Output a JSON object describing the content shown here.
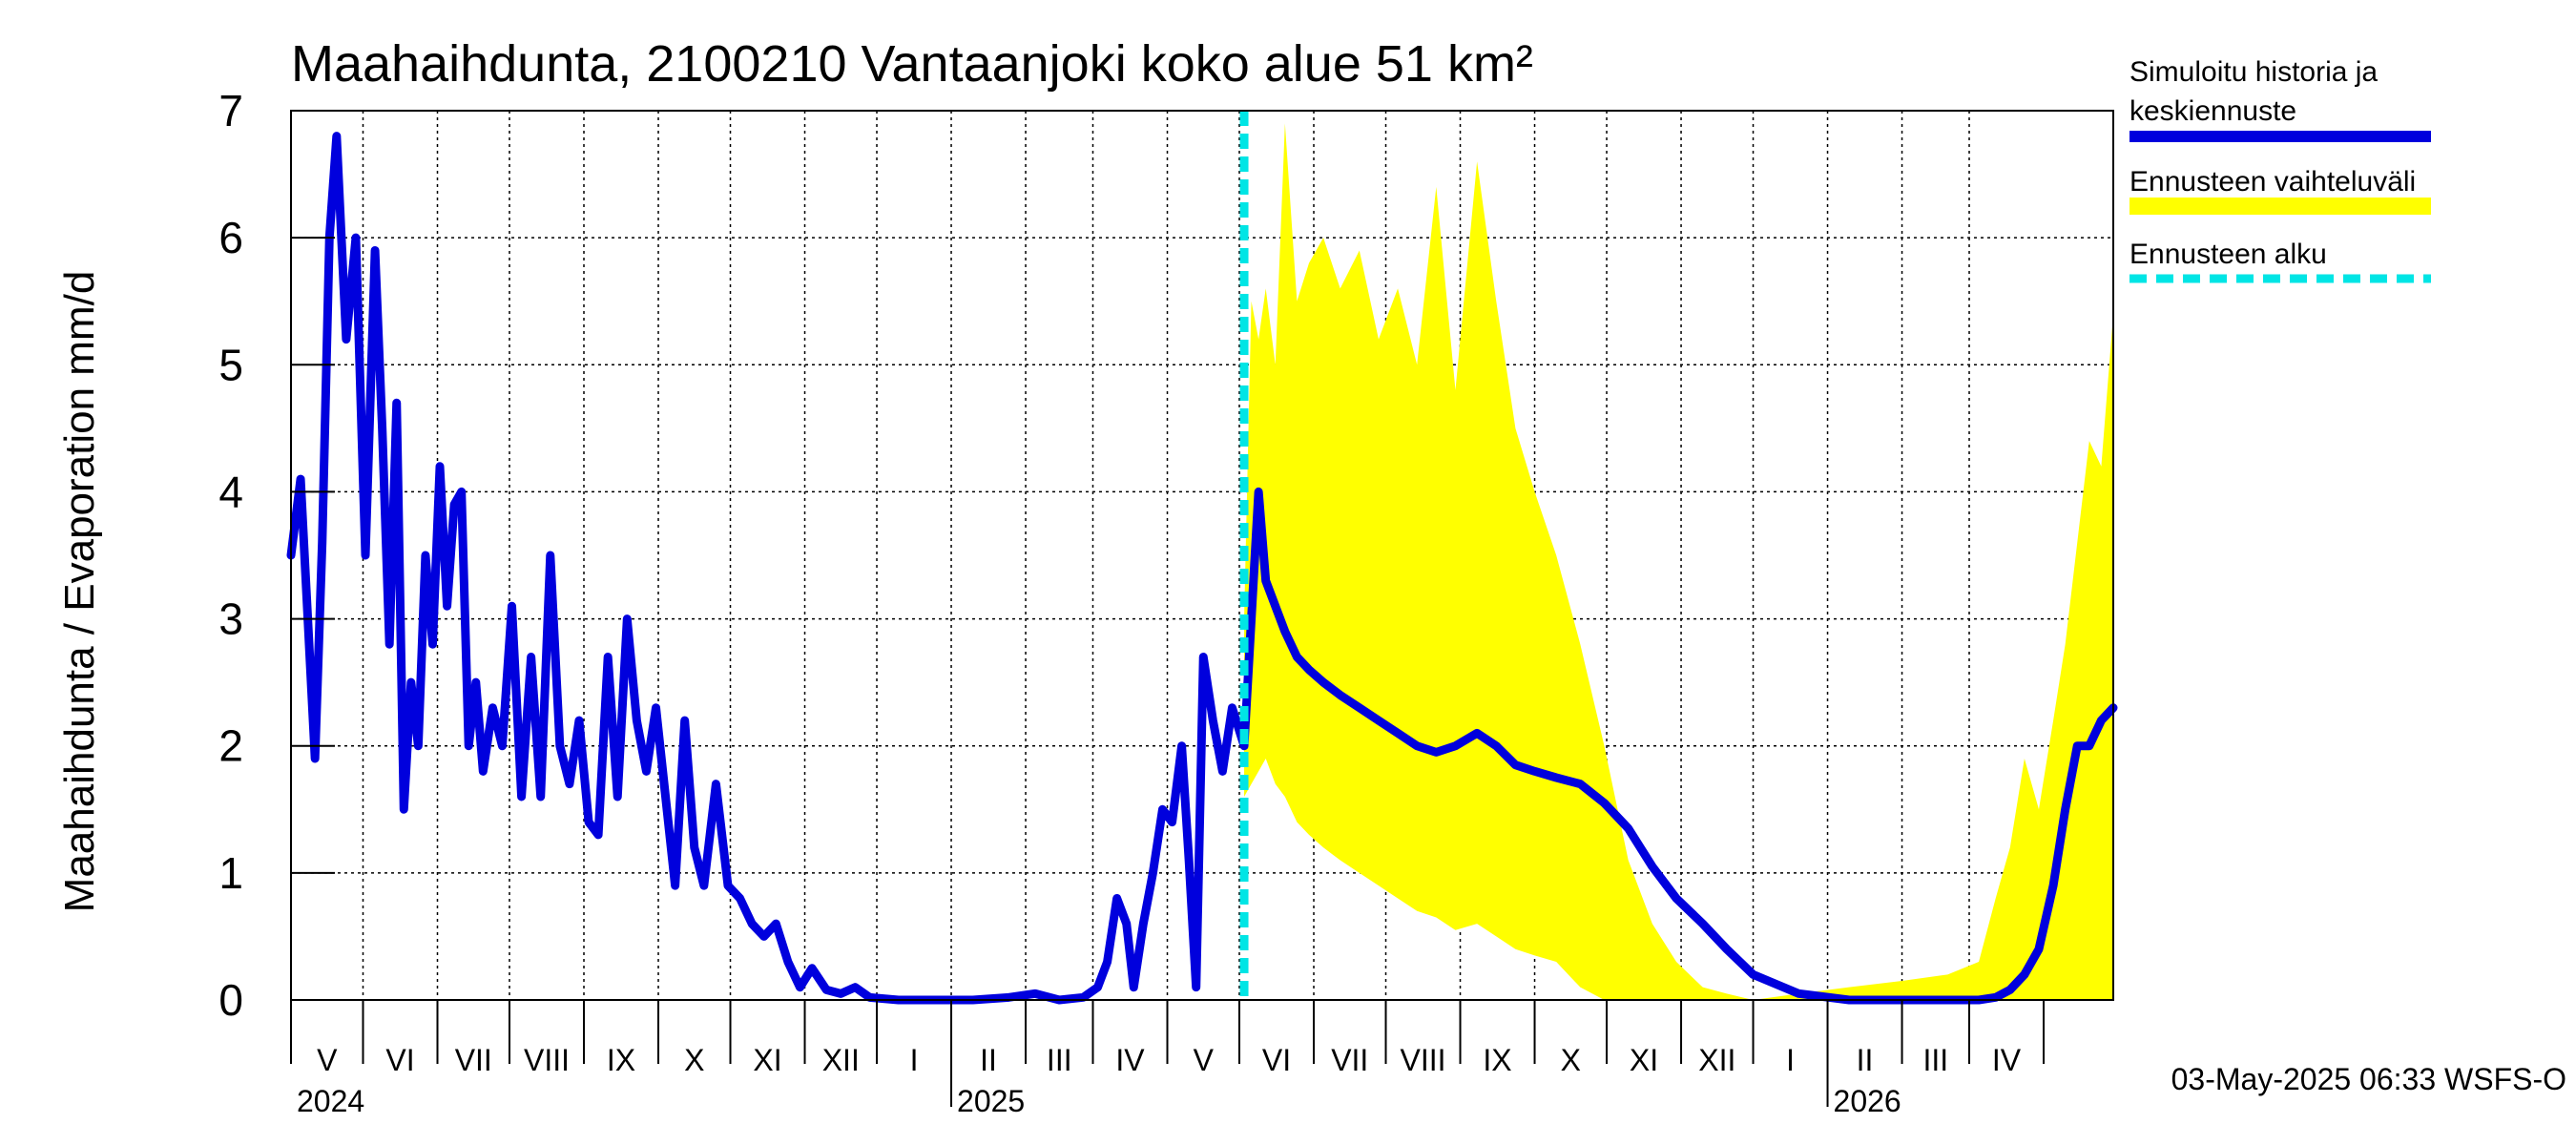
{
  "chart_data": {
    "type": "line",
    "title": "Maahaihdunta, 2100210 Vantaanjoki koko alue 51 km²",
    "ylabel": "Maahaihdunta / Evaporation   mm/d",
    "xlabel": "",
    "ylim": [
      0,
      7
    ],
    "yticks": [
      "0",
      "1",
      "2",
      "3",
      "4",
      "5",
      "6",
      "7"
    ],
    "xlim": [
      "2024-04-01",
      "2026-04-30"
    ],
    "grid": true,
    "legend_placement": "right",
    "forecast_start": "2025-05-03",
    "months": [
      "V",
      "VI",
      "VII",
      "VIII",
      "IX",
      "X",
      "XI",
      "XII",
      "I",
      "II",
      "III",
      "IV",
      "V",
      "VI",
      "VII",
      "VIII",
      "IX",
      "X",
      "XI",
      "XII",
      "I",
      "II",
      "III",
      "IV"
    ],
    "years": [
      {
        "label": "2024",
        "date": "2024-04-01"
      },
      {
        "label": "2025",
        "date": "2025-01-01"
      },
      {
        "label": "2026",
        "date": "2026-01-01"
      }
    ],
    "colors": {
      "history": "#0000dd",
      "range": "#ffff00",
      "forecast_start": "#00e5e5"
    },
    "series": [
      {
        "name": "Simuloitu historia ja keskiennuste",
        "x": [
          "2024-04-01",
          "2024-04-05",
          "2024-04-08",
          "2024-04-11",
          "2024-04-14",
          "2024-04-17",
          "2024-04-20",
          "2024-04-24",
          "2024-04-28",
          "2024-05-02",
          "2024-05-06",
          "2024-05-09",
          "2024-05-12",
          "2024-05-15",
          "2024-05-18",
          "2024-05-21",
          "2024-05-24",
          "2024-05-27",
          "2024-05-30",
          "2024-06-02",
          "2024-06-05",
          "2024-06-08",
          "2024-06-11",
          "2024-06-14",
          "2024-06-17",
          "2024-06-20",
          "2024-06-24",
          "2024-06-28",
          "2024-07-02",
          "2024-07-06",
          "2024-07-10",
          "2024-07-14",
          "2024-07-18",
          "2024-07-22",
          "2024-07-26",
          "2024-07-30",
          "2024-08-03",
          "2024-08-07",
          "2024-08-11",
          "2024-08-15",
          "2024-08-19",
          "2024-08-23",
          "2024-08-27",
          "2024-08-31",
          "2024-09-04",
          "2024-09-08",
          "2024-09-12",
          "2024-09-16",
          "2024-09-20",
          "2024-09-25",
          "2024-09-30",
          "2024-10-05",
          "2024-10-10",
          "2024-10-15",
          "2024-10-20",
          "2024-10-25",
          "2024-10-30",
          "2024-11-04",
          "2024-11-10",
          "2024-11-16",
          "2024-11-22",
          "2024-11-28",
          "2024-12-10",
          "2024-12-25",
          "2025-01-10",
          "2025-01-25",
          "2025-02-05",
          "2025-02-15",
          "2025-02-25",
          "2025-03-03",
          "2025-03-07",
          "2025-03-11",
          "2025-03-15",
          "2025-03-18",
          "2025-03-22",
          "2025-03-26",
          "2025-03-30",
          "2025-04-03",
          "2025-04-07",
          "2025-04-10",
          "2025-04-13",
          "2025-04-16",
          "2025-04-20",
          "2025-04-24",
          "2025-04-28",
          "2025-05-03",
          "2025-05-06",
          "2025-05-09",
          "2025-05-12",
          "2025-05-16",
          "2025-05-20",
          "2025-05-25",
          "2025-05-30",
          "2025-06-05",
          "2025-06-12",
          "2025-06-20",
          "2025-06-28",
          "2025-07-06",
          "2025-07-14",
          "2025-07-22",
          "2025-07-30",
          "2025-08-08",
          "2025-08-16",
          "2025-08-24",
          "2025-09-01",
          "2025-09-10",
          "2025-09-20",
          "2025-09-30",
          "2025-10-10",
          "2025-10-20",
          "2025-10-30",
          "2025-11-10",
          "2025-11-20",
          "2025-12-01",
          "2025-12-20",
          "2026-01-10",
          "2026-02-01",
          "2026-02-20",
          "2026-03-05",
          "2026-03-12",
          "2026-03-18",
          "2026-03-24",
          "2026-03-30",
          "2026-04-05",
          "2026-04-10",
          "2026-04-15",
          "2026-04-20",
          "2026-04-25",
          "2026-04-30"
        ],
        "y": [
          3.5,
          4.1,
          3.0,
          1.9,
          3.6,
          6.0,
          6.8,
          5.2,
          6.0,
          3.5,
          5.9,
          4.5,
          2.8,
          4.7,
          1.5,
          2.5,
          2.0,
          3.5,
          2.8,
          4.2,
          3.1,
          3.9,
          4.0,
          2.0,
          2.5,
          1.8,
          2.3,
          2.0,
          3.1,
          1.6,
          2.7,
          1.6,
          3.5,
          2.0,
          1.7,
          2.2,
          1.4,
          1.3,
          2.7,
          1.6,
          3.0,
          2.2,
          1.8,
          2.3,
          1.6,
          0.9,
          2.2,
          1.2,
          0.9,
          1.7,
          0.9,
          0.8,
          0.6,
          0.5,
          0.6,
          0.3,
          0.1,
          0.25,
          0.08,
          0.05,
          0.1,
          0.02,
          0.0,
          0.0,
          0.0,
          0.02,
          0.05,
          0.0,
          0.02,
          0.1,
          0.3,
          0.8,
          0.6,
          0.1,
          0.6,
          1.0,
          1.5,
          1.4,
          2.0,
          1.1,
          0.1,
          2.7,
          2.2,
          1.8,
          2.3,
          2.0,
          3.0,
          4.0,
          3.3,
          3.1,
          2.9,
          2.7,
          2.6,
          2.5,
          2.4,
          2.3,
          2.2,
          2.1,
          2.0,
          1.95,
          2.0,
          2.1,
          2.0,
          1.85,
          1.8,
          1.75,
          1.7,
          1.55,
          1.35,
          1.05,
          0.8,
          0.6,
          0.4,
          0.2,
          0.05,
          0.0,
          0.0,
          0.0,
          0.0,
          0.02,
          0.08,
          0.2,
          0.4,
          0.9,
          1.5,
          2.0,
          2.0,
          2.2,
          2.3
        ]
      },
      {
        "name": "Ennusteen vaihteluväli",
        "x": [
          "2025-05-03",
          "2025-05-06",
          "2025-05-09",
          "2025-05-12",
          "2025-05-16",
          "2025-05-20",
          "2025-05-25",
          "2025-05-30",
          "2025-06-05",
          "2025-06-12",
          "2025-06-20",
          "2025-06-28",
          "2025-07-06",
          "2025-07-14",
          "2025-07-22",
          "2025-07-30",
          "2025-08-08",
          "2025-08-16",
          "2025-08-24",
          "2025-09-01",
          "2025-09-10",
          "2025-09-20",
          "2025-09-30",
          "2025-10-10",
          "2025-10-20",
          "2025-10-30",
          "2025-11-10",
          "2025-11-20",
          "2025-12-01",
          "2025-12-20",
          "2026-01-10",
          "2026-02-01",
          "2026-02-20",
          "2026-03-05",
          "2026-03-12",
          "2026-03-18",
          "2026-03-24",
          "2026-03-30",
          "2026-04-05",
          "2026-04-10",
          "2026-04-15",
          "2026-04-20",
          "2026-04-25",
          "2026-04-30"
        ],
        "low": [
          1.6,
          1.7,
          1.8,
          1.9,
          1.7,
          1.6,
          1.4,
          1.3,
          1.2,
          1.1,
          1.0,
          0.9,
          0.8,
          0.7,
          0.65,
          0.55,
          0.6,
          0.5,
          0.4,
          0.35,
          0.3,
          0.1,
          0.0,
          0.0,
          0.0,
          0.0,
          0.0,
          0.0,
          0.0,
          0.0,
          0.0,
          0.0,
          0.0,
          0.0,
          0.0,
          0.0,
          0.0,
          0.0,
          0.0,
          0.0,
          0.0,
          0.0,
          0.0,
          0.0
        ],
        "high": [
          3.0,
          5.5,
          5.2,
          5.6,
          5.0,
          6.9,
          5.5,
          5.8,
          6.0,
          5.6,
          5.9,
          5.2,
          5.6,
          5.0,
          6.4,
          4.8,
          6.6,
          5.5,
          4.5,
          4.0,
          3.5,
          2.8,
          2.0,
          1.1,
          0.6,
          0.3,
          0.1,
          0.05,
          0.0,
          0.05,
          0.1,
          0.15,
          0.2,
          0.3,
          0.8,
          1.2,
          1.9,
          1.5,
          2.2,
          2.8,
          3.6,
          4.4,
          4.2,
          5.4
        ]
      }
    ],
    "legend": [
      {
        "label": "Simuloitu historia ja",
        "label2": "keskiennuste"
      },
      {
        "label": "Ennusteen vaihteluväli"
      },
      {
        "label": "Ennusteen alku"
      }
    ],
    "timestamp": "03-May-2025 06:33 WSFS-O"
  }
}
